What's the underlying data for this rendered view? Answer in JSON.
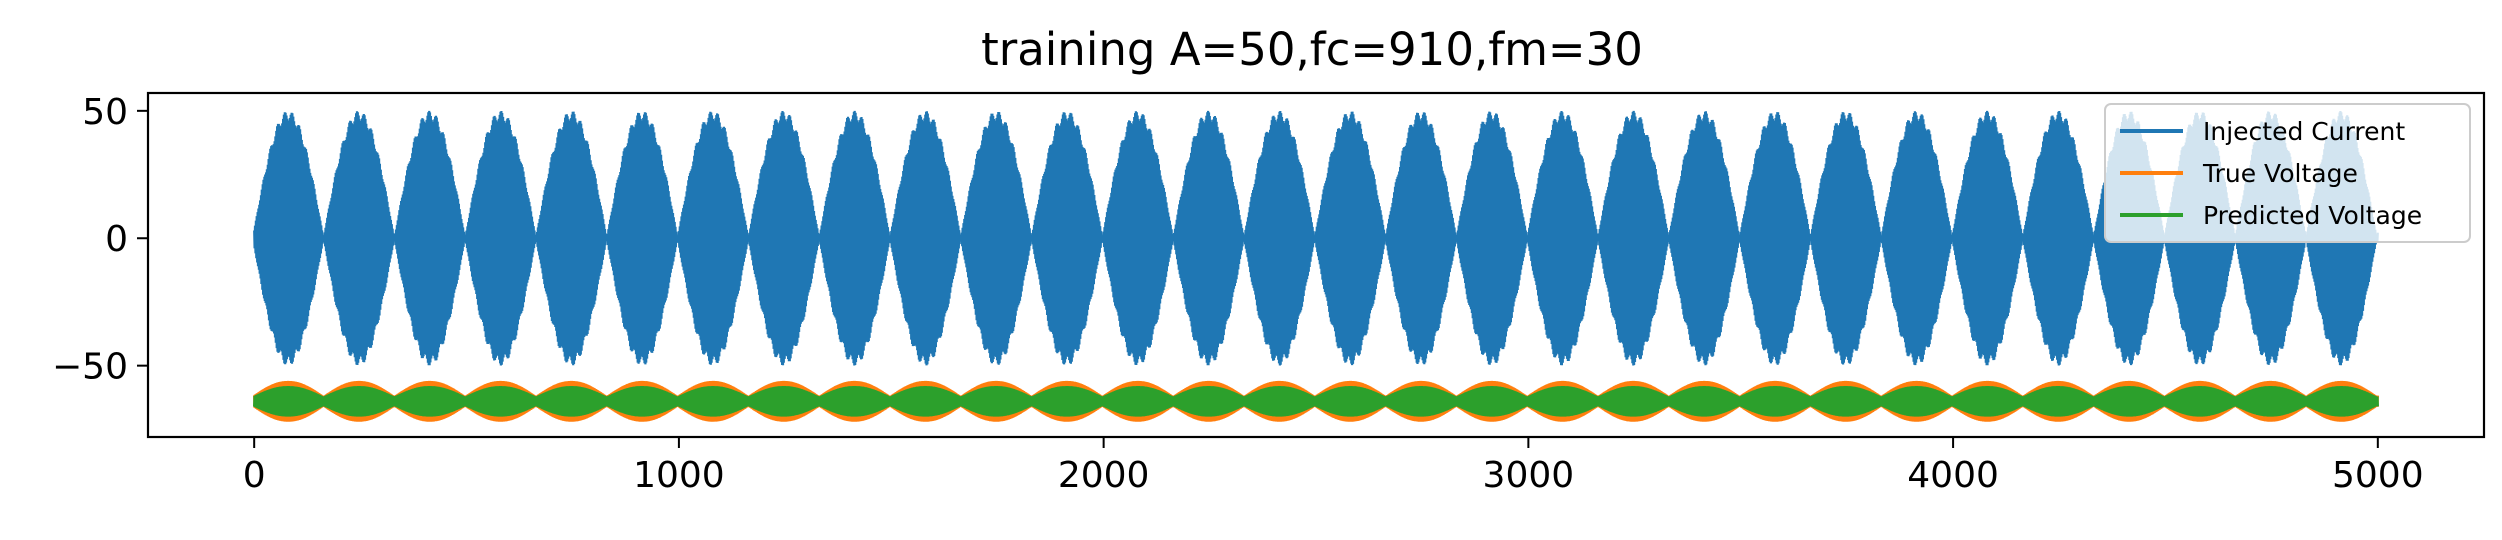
{
  "chart_data": {
    "type": "line",
    "title": "training A=50,fc=910,fm=30",
    "xlabel": "",
    "ylabel": "",
    "xlim": [
      -250,
      5250
    ],
    "ylim": [
      -78,
      57
    ],
    "xticks": [
      0,
      1000,
      2000,
      3000,
      4000,
      5000
    ],
    "xtick_labels": [
      "0",
      "1000",
      "2000",
      "3000",
      "4000",
      "5000"
    ],
    "yticks": [
      50,
      0,
      -50
    ],
    "ytick_labels": [
      "50",
      "0",
      "−50"
    ],
    "grid": false,
    "legend_position": "top-right",
    "samples": 5000,
    "series": [
      {
        "name": "Injected Current",
        "color": "#1f77b4",
        "description_amplitude": 50,
        "x_range": [
          0,
          5000
        ],
        "y_range": [
          -50,
          50
        ],
        "envelope_peaks_x": [
          80,
          245,
          410,
          580,
          745,
          910,
          1080,
          1245,
          1410,
          1580,
          1745,
          1910,
          2080,
          2245,
          2410,
          2580,
          2745,
          2910,
          3080,
          3245,
          3410,
          3580,
          3745,
          3910,
          4080,
          4245,
          4410,
          4580,
          4745,
          4910
        ]
      },
      {
        "name": "True Voltage",
        "color": "#ff7f0e",
        "x_range": [
          0,
          5000
        ],
        "y_range": [
          -72,
          -56
        ],
        "center": -64
      },
      {
        "name": "Predicted Voltage",
        "color": "#2ca02c",
        "x_range": [
          0,
          5000
        ],
        "y_range": [
          -70,
          -58
        ],
        "center": -64
      }
    ]
  }
}
